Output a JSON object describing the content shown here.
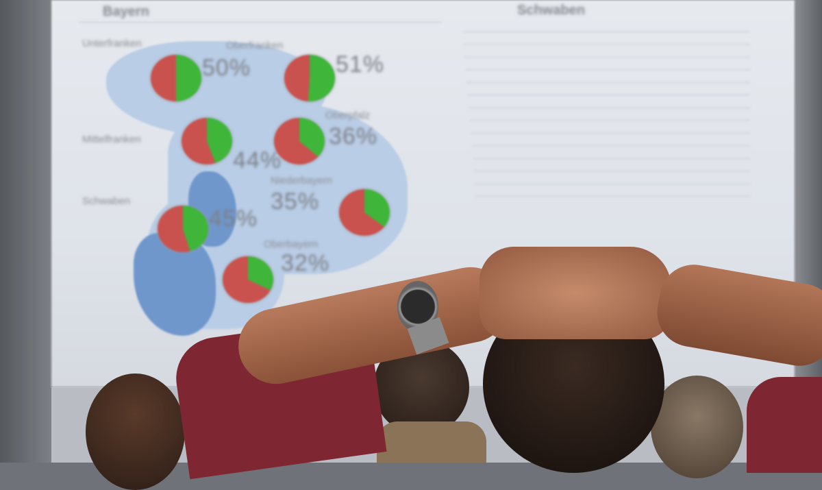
{
  "screen": {
    "left_title": "Bayern",
    "right_title": "Schwaben",
    "pie_colors": {
      "red": "#c9524f",
      "green": "#3fb53a"
    },
    "regions": [
      {
        "name": "Unterfranken",
        "percent": "50%"
      },
      {
        "name": "Oberfranken",
        "percent": "51%"
      },
      {
        "name": "Mittelfranken",
        "percent": "44%"
      },
      {
        "name": "Oberpfalz",
        "percent": "36%"
      },
      {
        "name": "Schwaben",
        "percent": "45%"
      },
      {
        "name": "Niederbayern",
        "percent": "35%"
      },
      {
        "name": "Oberbayern",
        "percent": "32%"
      }
    ]
  }
}
